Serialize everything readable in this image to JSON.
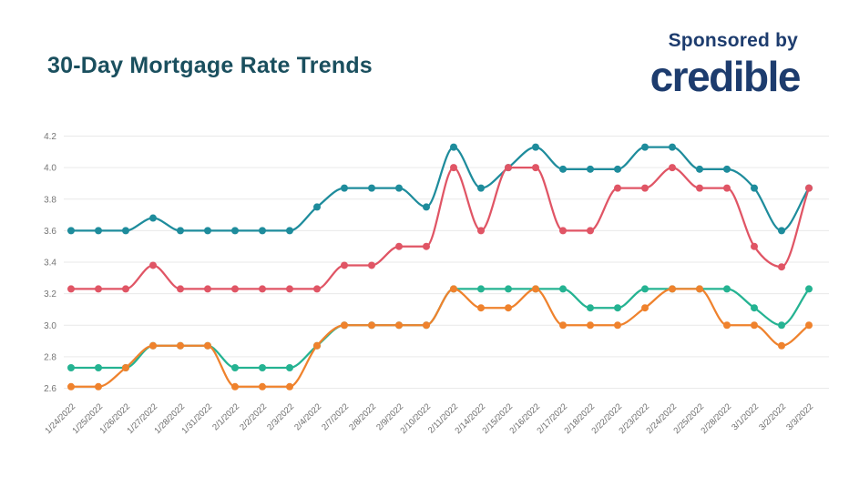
{
  "header": {
    "title": "30-Day Mortgage Rate Trends",
    "title_color": "#1a4f5e",
    "sponsored_by": "Sponsored by",
    "brand": "credible",
    "brand_color": "#1d3c6e"
  },
  "chart_data": {
    "type": "line",
    "title": "30-Day Mortgage Rate Trends",
    "xlabel": "",
    "ylabel": "",
    "grid": true,
    "legend": "none",
    "ylim": [
      2.6,
      4.2
    ],
    "yticks": [
      4.2,
      4.0,
      3.8,
      3.6,
      3.4,
      3.2,
      3.0,
      2.8,
      2.6
    ],
    "grid_color": "#e9e9e9",
    "axis_label_color": "#757575",
    "date_label_color": "#6b6b6b",
    "x": [
      "1/24/2022",
      "1/25/2022",
      "1/26/2022",
      "1/27/2022",
      "1/28/2022",
      "1/31/2022",
      "2/1/2022",
      "2/2/2022",
      "2/3/2022",
      "2/4/2022",
      "2/7/2022",
      "2/8/2022",
      "2/9/2022",
      "2/10/2022",
      "2/11/2022",
      "2/14/2022",
      "2/15/2022",
      "2/16/2022",
      "2/17/2022",
      "2/18/2022",
      "2/22/2022",
      "2/23/2022",
      "2/24/2022",
      "2/25/2022",
      "2/28/2022",
      "3/1/2022",
      "3/2/2022",
      "3/3/2022"
    ],
    "series": [
      {
        "name": "teal-line",
        "color": "#1e8c9c",
        "values": [
          3.6,
          3.6,
          3.6,
          3.68,
          3.6,
          3.6,
          3.6,
          3.6,
          3.6,
          3.75,
          3.87,
          3.87,
          3.87,
          3.75,
          4.13,
          3.87,
          4.0,
          4.13,
          3.99,
          3.99,
          3.99,
          4.13,
          4.13,
          3.99,
          3.99,
          3.87,
          3.6,
          3.87
        ]
      },
      {
        "name": "red-line",
        "color": "#e05565",
        "values": [
          3.23,
          3.23,
          3.23,
          3.38,
          3.23,
          3.23,
          3.23,
          3.23,
          3.23,
          3.23,
          3.38,
          3.38,
          3.5,
          3.5,
          4.0,
          3.6,
          4.0,
          4.0,
          3.6,
          3.6,
          3.87,
          3.87,
          4.0,
          3.87,
          3.87,
          3.5,
          3.37,
          3.87
        ]
      },
      {
        "name": "green-line",
        "color": "#25b392",
        "values": [
          2.73,
          2.73,
          2.73,
          2.87,
          2.87,
          2.87,
          2.73,
          2.73,
          2.73,
          2.87,
          3.0,
          3.0,
          3.0,
          3.0,
          3.23,
          3.23,
          3.23,
          3.23,
          3.23,
          3.11,
          3.11,
          3.23,
          3.23,
          3.23,
          3.23,
          3.11,
          3.0,
          3.23
        ]
      },
      {
        "name": "orange-line",
        "color": "#ef822d",
        "values": [
          2.61,
          2.61,
          2.73,
          2.87,
          2.87,
          2.87,
          2.61,
          2.61,
          2.61,
          2.87,
          3.0,
          3.0,
          3.0,
          3.0,
          3.23,
          3.11,
          3.11,
          3.23,
          3.0,
          3.0,
          3.0,
          3.11,
          3.23,
          3.23,
          3.0,
          3.0,
          2.87,
          3.0
        ]
      }
    ]
  }
}
